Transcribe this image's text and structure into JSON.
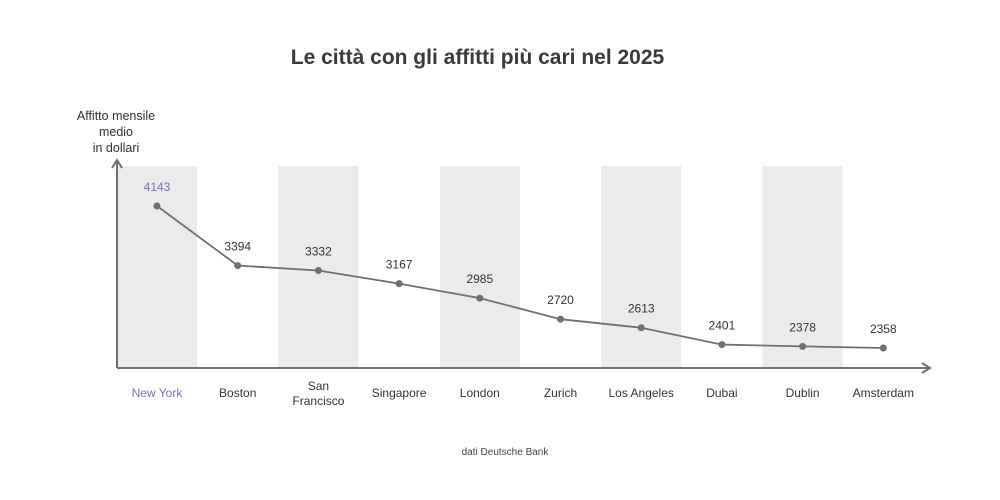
{
  "chart_data": {
    "type": "line",
    "title": "Le città con gli affitti più cari nel 2025",
    "ylabel_lines": [
      "Affitto mensile",
      "medio",
      "in dollari"
    ],
    "xlabel": "",
    "categories": [
      [
        "New York"
      ],
      [
        "Boston"
      ],
      [
        "San",
        "Francisco"
      ],
      [
        "Singapore"
      ],
      [
        "London"
      ],
      [
        "Zurich"
      ],
      [
        "Los Angeles"
      ],
      [
        "Dubai"
      ],
      [
        "Dublin"
      ],
      [
        "Amsterdam"
      ]
    ],
    "series": [
      {
        "values": [
          4143,
          3394,
          3332,
          3167,
          2985,
          2720,
          2613,
          2401,
          2378,
          2358
        ]
      }
    ],
    "highlight_index": 0,
    "alternating_shaded_columns": true,
    "grid": false,
    "source": "dati Deutsche Bank"
  },
  "colors": {
    "line": "#707070",
    "marker": "#707070",
    "shade": "#ebebeb",
    "axis": "#707070",
    "highlight": "#7b6fc2",
    "text": "#333333"
  }
}
